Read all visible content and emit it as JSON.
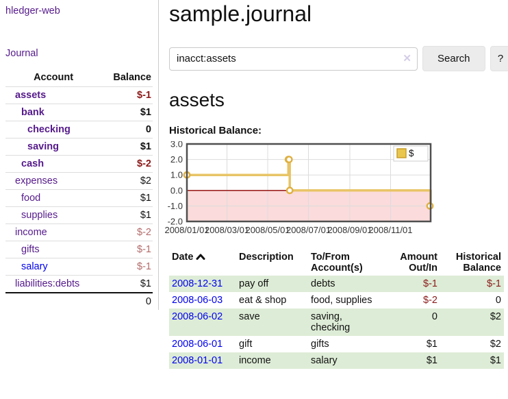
{
  "app": {
    "brand": "hledger-web",
    "nav_journal": "Journal"
  },
  "sidebar": {
    "headers": {
      "account": "Account",
      "balance": "Balance"
    },
    "accounts": [
      {
        "name": "assets",
        "indent": 0,
        "bold": true,
        "balance": "$-1",
        "balance_style": "neg-strong"
      },
      {
        "name": "bank",
        "indent": 1,
        "bold": true,
        "balance": "$1",
        "balance_style": "pos"
      },
      {
        "name": "checking",
        "indent": 2,
        "bold": true,
        "balance": "0",
        "balance_style": "pos"
      },
      {
        "name": "saving",
        "indent": 2,
        "bold": true,
        "balance": "$1",
        "balance_style": "pos"
      },
      {
        "name": "cash",
        "indent": 1,
        "bold": true,
        "balance": "$-2",
        "balance_style": "neg-strong"
      },
      {
        "name": "expenses",
        "indent": 0,
        "bold": false,
        "balance": "$2",
        "balance_style": "pos"
      },
      {
        "name": "food",
        "indent": 1,
        "bold": false,
        "balance": "$1",
        "balance_style": "pos"
      },
      {
        "name": "supplies",
        "indent": 1,
        "bold": false,
        "balance": "$1",
        "balance_style": "pos"
      },
      {
        "name": "income",
        "indent": 0,
        "bold": false,
        "balance": "$-2",
        "balance_style": "neg-muted"
      },
      {
        "name": "gifts",
        "indent": 1,
        "bold": false,
        "balance": "$-1",
        "balance_style": "neg-muted"
      },
      {
        "name": "salary",
        "indent": 1,
        "bold": false,
        "link_style": "unvisited",
        "balance": "$-1",
        "balance_style": "neg-muted"
      },
      {
        "name": "liabilities:debts",
        "indent": 0,
        "bold": false,
        "balance": "$1",
        "balance_style": "pos"
      }
    ],
    "total": "0"
  },
  "header": {
    "title": "sample.journal"
  },
  "search": {
    "value": "inacct:assets",
    "clear_glyph": "✕",
    "button_label": "Search",
    "help_label": "?"
  },
  "account_page": {
    "heading": "assets",
    "chart_title": "Historical Balance:"
  },
  "chart_data": {
    "type": "line",
    "step": true,
    "title": "Historical Balance:",
    "series": [
      {
        "name": "$",
        "points": [
          {
            "date": "2008-01-01",
            "value": 1
          },
          {
            "date": "2008-06-01",
            "value": 2
          },
          {
            "date": "2008-06-02",
            "value": 2
          },
          {
            "date": "2008-06-03",
            "value": 0
          },
          {
            "date": "2008-12-31",
            "value": -1
          }
        ]
      }
    ],
    "ylim": [
      -2,
      3
    ],
    "ytick_labels": [
      "3.0",
      "2.0",
      "1.0",
      "0.0",
      "-1.0",
      "-2.0"
    ],
    "ytick_values": [
      3,
      2,
      1,
      0,
      -1,
      -2
    ],
    "xtick_labels": [
      "2008/01/01",
      "2008/03/01",
      "2008/05/01",
      "2008/07/01",
      "2008/09/01",
      "2008/11/01"
    ],
    "x_range": [
      "2008-01-01",
      "2008-12-31"
    ],
    "legend": "$",
    "legend_position": "top-right",
    "grid": true,
    "negative_region_shaded": true,
    "colors": {
      "line": "#e8c466",
      "marker_ring": "#dfb041",
      "marker_fill": "#ffffff",
      "legend_fill": "#e9c64d",
      "legend_border": "#c79e2c",
      "negative_fill": "#fbdbdb",
      "zero_line": "#8b0000",
      "grid": "#dcdcdc",
      "border": "#4f4f4f"
    }
  },
  "register": {
    "headers": {
      "date": "Date",
      "description": "Description",
      "accounts": "To/From\nAccount(s)",
      "amount": "Amount\nOut/In",
      "balance": "Historical\nBalance"
    },
    "rows": [
      {
        "date": "2008-12-31",
        "description": "pay off",
        "accounts": "debts",
        "amount": "$-1",
        "amount_neg": true,
        "balance": "$-1",
        "balance_neg": true
      },
      {
        "date": "2008-06-03",
        "description": "eat & shop",
        "accounts": "food, supplies",
        "amount": "$-2",
        "amount_neg": true,
        "balance": "0",
        "balance_neg": false
      },
      {
        "date": "2008-06-02",
        "description": "save",
        "accounts": "saving,\nchecking",
        "amount": "0",
        "amount_neg": false,
        "balance": "$2",
        "balance_neg": false
      },
      {
        "date": "2008-06-01",
        "description": "gift",
        "accounts": "gifts",
        "amount": "$1",
        "amount_neg": false,
        "balance": "$2",
        "balance_neg": false
      },
      {
        "date": "2008-01-01",
        "description": "income",
        "accounts": "salary",
        "amount": "$1",
        "amount_neg": false,
        "balance": "$1",
        "balance_neg": false
      }
    ]
  },
  "colors": {
    "link_visited": "#551a8b",
    "link_unvisited": "#0000ee",
    "negative_strong": "#8b1a1a",
    "negative_muted": "#b36b6b",
    "row_stripe": "#ddecd6"
  }
}
